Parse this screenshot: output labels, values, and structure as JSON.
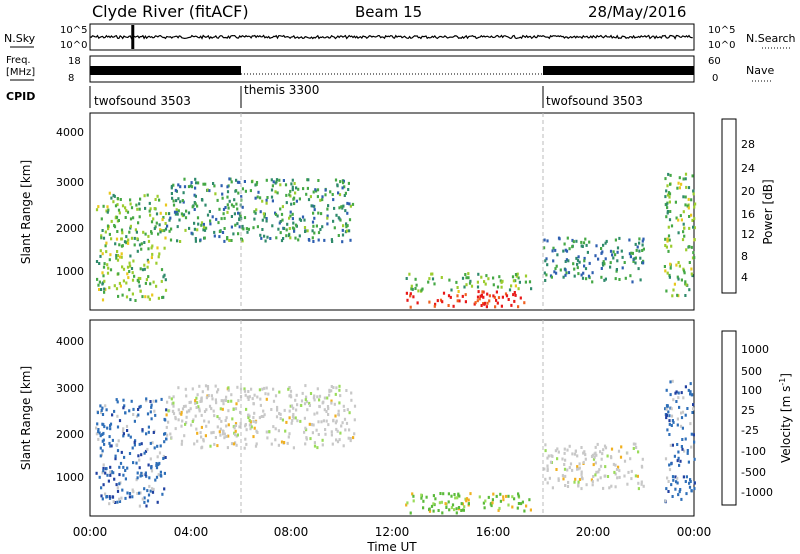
{
  "header": {
    "station": "Clyde River (fitACF)",
    "beam": "Beam 15",
    "date": "28/May/2016"
  },
  "status_panel": {
    "nsky_label": "N.Sky",
    "nsearch_label": "N.Search",
    "noise_ticks": [
      "10^5",
      "10^0"
    ],
    "freq_label_top": "Freq.",
    "freq_label_unit": "[MHz]",
    "freq_ticks": [
      "18",
      "8"
    ],
    "nave_label": "Nave",
    "nave_ticks": [
      "60",
      "0"
    ],
    "cpid_label": "CPID",
    "cpid_segments": [
      {
        "name": "twofsound 3503",
        "start_hour": 0,
        "end_hour": 6
      },
      {
        "name": "themis 3300",
        "start_hour": 6,
        "end_hour": 18
      },
      {
        "name": "twofsound 3503",
        "start_hour": 18,
        "end_hour": 24
      }
    ]
  },
  "chart_data": [
    {
      "type": "heatmap",
      "panel": "power",
      "ylabel": "Slant Range [km]",
      "xlabel": "",
      "ylim": [
        180,
        4500
      ],
      "xlim": [
        0,
        24
      ],
      "yticks": [
        "1000",
        "2000",
        "3000",
        "4000"
      ],
      "colorbar": {
        "label": "Power [dB]",
        "ticks": [
          "4",
          "8",
          "12",
          "16",
          "20",
          "24",
          "28"
        ],
        "range": [
          0,
          32
        ],
        "colors": [
          "#1515e6",
          "#2e5fb0",
          "#2f8a6b",
          "#45a845",
          "#9ccc2e",
          "#e8c81e",
          "#f59a1a",
          "#f06020",
          "#e81818"
        ]
      },
      "features": [
        {
          "desc_hours": [
            0.2,
            3.0
          ],
          "range_km": [
            400,
            2800
          ],
          "power_db": 14
        },
        {
          "desc_hours": [
            3.0,
            10.5
          ],
          "range_km": [
            1700,
            3100
          ],
          "power_db": 10
        },
        {
          "desc_hours": [
            12.5,
            17.5
          ],
          "range_km": [
            250,
            600
          ],
          "power_db": 30
        },
        {
          "desc_hours": [
            12.5,
            17.5
          ],
          "range_km": [
            600,
            1000
          ],
          "power_db": 14
        },
        {
          "desc_hours": [
            18.0,
            22.0
          ],
          "range_km": [
            800,
            1800
          ],
          "power_db": 9
        },
        {
          "desc_hours": [
            22.8,
            24.0
          ],
          "range_km": [
            500,
            3200
          ],
          "power_db": 14
        }
      ]
    },
    {
      "type": "heatmap",
      "panel": "velocity",
      "ylabel": "Slant Range [km]",
      "xlabel": "Time UT",
      "ylim": [
        180,
        4500
      ],
      "xlim": [
        0,
        24
      ],
      "yticks": [
        "1000",
        "2000",
        "3000",
        "4000"
      ],
      "xticks": [
        "00:00",
        "04:00",
        "08:00",
        "12:00",
        "16:00",
        "20:00",
        "00:00"
      ],
      "colorbar": {
        "label": "Velocity [m s^-1]",
        "ticks": [
          "1000",
          "500",
          "100",
          "25",
          "-25",
          "-100",
          "-500",
          "-1000"
        ],
        "colors": [
          "#2040a0",
          "#2f6fb8",
          "#2f8a6b",
          "#5aba3a",
          "#9adc5a",
          "#c8c8c8",
          "#f0b020",
          "#f08020",
          "#f05020",
          "#e81818"
        ]
      },
      "features": [
        {
          "desc_hours": [
            0.2,
            3.0
          ],
          "range_km": [
            400,
            2800
          ],
          "velocity_ms": 500
        },
        {
          "desc_hours": [
            3.0,
            10.5
          ],
          "range_km": [
            1700,
            3100
          ],
          "velocity_ms": 0
        },
        {
          "desc_hours": [
            12.5,
            17.5
          ],
          "range_km": [
            250,
            700
          ],
          "velocity_ms": 100
        },
        {
          "desc_hours": [
            18.0,
            22.0
          ],
          "range_km": [
            800,
            1800
          ],
          "velocity_ms": 0
        },
        {
          "desc_hours": [
            22.8,
            24.0
          ],
          "range_km": [
            500,
            3200
          ],
          "velocity_ms": 500
        }
      ]
    }
  ]
}
